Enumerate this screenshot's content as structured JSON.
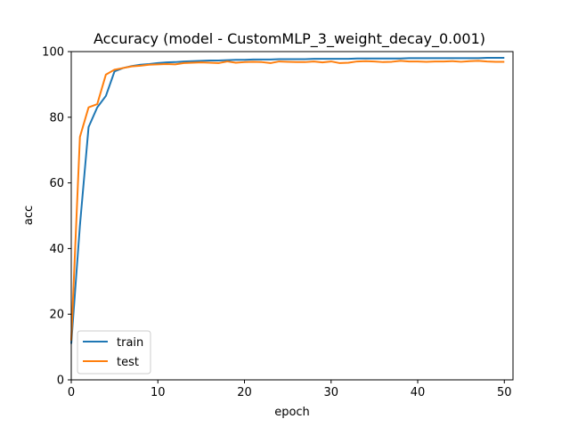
{
  "chart_data": {
    "type": "line",
    "title": "Accuracy (model - CustomMLP_3_weight_decay_0.001)",
    "xlabel": "epoch",
    "ylabel": "acc",
    "xlim": [
      0,
      51
    ],
    "ylim": [
      0,
      100
    ],
    "xticks": [
      0,
      10,
      20,
      30,
      40,
      50
    ],
    "yticks": [
      0,
      20,
      40,
      60,
      80,
      100
    ],
    "grid": false,
    "legend_position": "lower-left",
    "x": [
      0,
      1,
      2,
      3,
      4,
      5,
      6,
      7,
      8,
      9,
      10,
      11,
      12,
      13,
      14,
      15,
      16,
      17,
      18,
      19,
      20,
      21,
      22,
      23,
      24,
      25,
      26,
      27,
      28,
      29,
      30,
      31,
      32,
      33,
      34,
      35,
      36,
      37,
      38,
      39,
      40,
      41,
      42,
      43,
      44,
      45,
      46,
      47,
      48,
      49,
      50
    ],
    "series": [
      {
        "name": "train",
        "color": "#1f77b4",
        "values": [
          11,
          47,
          77,
          83,
          86.5,
          94,
          95,
          95.6,
          96,
          96.2,
          96.5,
          96.7,
          96.8,
          97,
          97.1,
          97.2,
          97.3,
          97.3,
          97.4,
          97.5,
          97.5,
          97.6,
          97.6,
          97.6,
          97.7,
          97.7,
          97.7,
          97.7,
          97.8,
          97.8,
          97.8,
          97.8,
          97.8,
          97.9,
          97.9,
          97.9,
          97.9,
          97.9,
          97.9,
          98,
          98,
          98,
          98,
          98,
          98,
          98,
          98,
          98,
          98.1,
          98.1,
          98.1
        ]
      },
      {
        "name": "test",
        "color": "#ff7f0e",
        "values": [
          12,
          74,
          83,
          84,
          93,
          94.5,
          95,
          95.5,
          95.7,
          96,
          96.1,
          96.2,
          96.1,
          96.5,
          96.6,
          96.7,
          96.6,
          96.5,
          97,
          96.6,
          96.8,
          96.9,
          96.8,
          96.5,
          97,
          96.9,
          96.8,
          96.8,
          97,
          96.7,
          97,
          96.5,
          96.6,
          97,
          97.1,
          97,
          96.8,
          96.9,
          97.2,
          97,
          97,
          96.9,
          97,
          97,
          97.1,
          96.9,
          97.1,
          97.2,
          97,
          96.9,
          96.9
        ]
      }
    ]
  }
}
